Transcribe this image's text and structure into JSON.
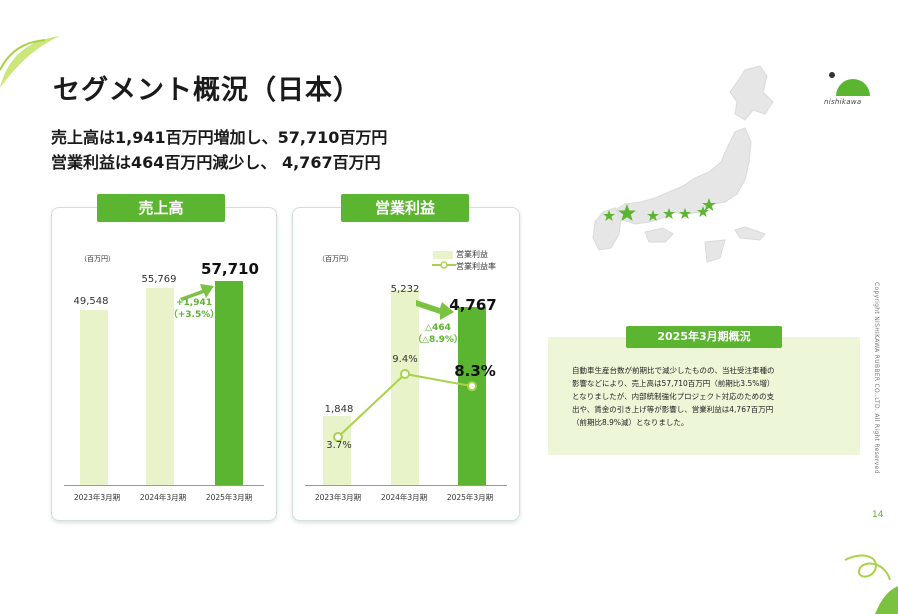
{
  "slide": {
    "title": "セグメント概況（日本）",
    "headline_line1": "売上高は1,941百万円増加し、57,710百万円",
    "headline_line2": "営業利益は464百万円減少し、 4,767百万円",
    "page_number": "14",
    "copyright": "Copyright NISHIKAWA RUBBER CO.,LTD. All Right Reserved",
    "logo_text": "nishikawa"
  },
  "colors": {
    "accent": "#5cb531",
    "light_bar": "#e8f3c9",
    "summary_bg": "#eef6d8"
  },
  "chart_data": [
    {
      "type": "bar",
      "label": "売上高",
      "unit": "（百万円）",
      "categories": [
        "2023年3月期",
        "2024年3月期",
        "2025年3月期"
      ],
      "values": [
        49548,
        55769,
        57710
      ],
      "value_labels": [
        "49,548",
        "55,769",
        "57,710"
      ],
      "delta_line1": "+1,941",
      "delta_line2": "（+3.5%）"
    },
    {
      "type": "bar",
      "label": "営業利益",
      "unit": "（百万円）",
      "categories": [
        "2023年3月期",
        "2024年3月期",
        "2025年3月期"
      ],
      "legend": [
        "営業利益",
        "営業利益率"
      ],
      "values": [
        1848,
        5232,
        4767
      ],
      "value_labels": [
        "1,848",
        "5,232",
        "4,767"
      ],
      "margin_values": [
        3.7,
        9.4,
        8.3
      ],
      "margin_labels": [
        "3.7%",
        "9.4%",
        "8.3%"
      ],
      "delta_line1": "△464",
      "delta_line2": "（△8.9%）"
    }
  ],
  "summary": {
    "title": "2025年3月期概況",
    "lines": [
      "自動車生産台数が前期比で減少したものの、当社受注車種の",
      "影響などにより、売上高は57,710百万円（前期比3.5%増）",
      "となりましたが、内部統制強化プロジェクト対応のための支",
      "出や、賃金の引き上げ等が影響し、営業利益は4,767百万円",
      "（前期比8.9%減）となりました。"
    ]
  }
}
